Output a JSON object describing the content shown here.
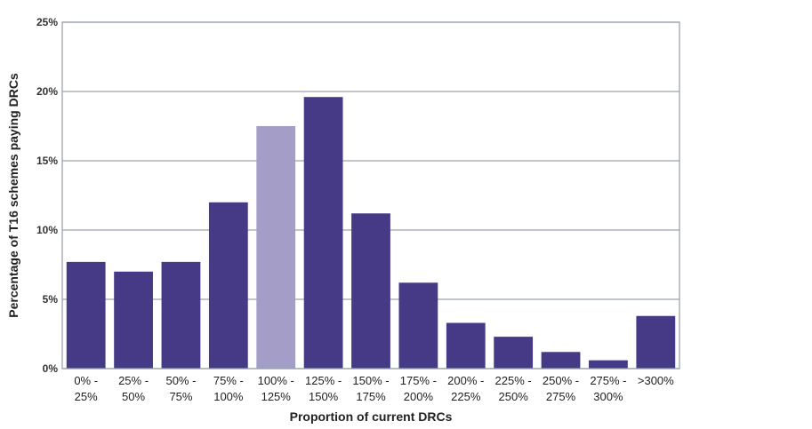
{
  "chart_data": {
    "type": "bar",
    "xlabel": "Proportion of current DRCs",
    "ylabel": "Percentage of T16 schemes paying DRCs",
    "categories": [
      [
        "0% -",
        "25%"
      ],
      [
        "25% -",
        "50%"
      ],
      [
        "50% -",
        "75%"
      ],
      [
        "75% -",
        "100%"
      ],
      [
        "100% -",
        "125%"
      ],
      [
        "125% -",
        "150%"
      ],
      [
        "150% -",
        "175%"
      ],
      [
        "175% -",
        "200%"
      ],
      [
        "200% -",
        "225%"
      ],
      [
        "225% -",
        "250%"
      ],
      [
        "250% -",
        "275%"
      ],
      [
        "275% -",
        "300%"
      ],
      [
        ">300%"
      ]
    ],
    "values": [
      7.7,
      7.0,
      7.7,
      12.0,
      17.5,
      19.6,
      11.2,
      6.2,
      3.3,
      2.3,
      1.2,
      0.6,
      3.8
    ],
    "highlight_index": 4,
    "ylim": [
      0,
      25
    ],
    "yticks": [
      0,
      5,
      10,
      15,
      20,
      25
    ],
    "ytick_labels": [
      "0%",
      "5%",
      "10%",
      "15%",
      "20%",
      "25%"
    ],
    "grid": true,
    "colors": {
      "bar": "#463a87",
      "highlight": "#a39dc8",
      "grid": "#9aa3ad"
    }
  }
}
